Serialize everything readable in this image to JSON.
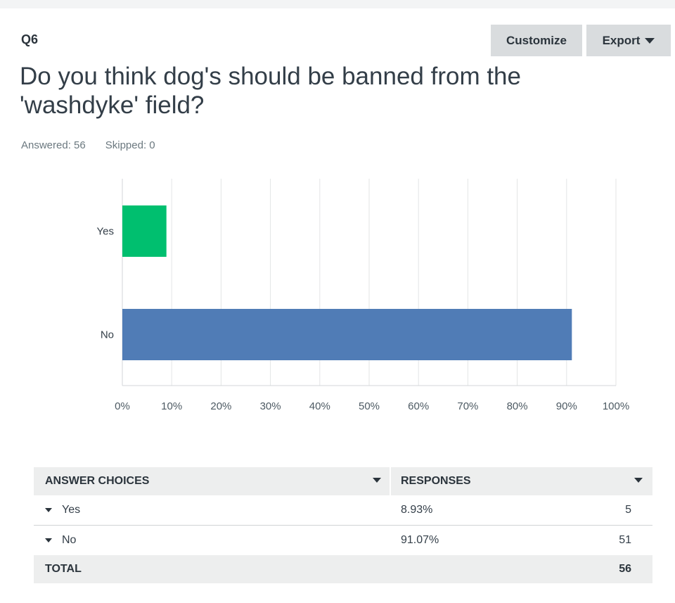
{
  "question": {
    "number": "Q6",
    "title": "Do you think dog's should be banned from the 'washdyke' field?",
    "answered_label": "Answered: 56",
    "skipped_label": "Skipped: 0"
  },
  "toolbar": {
    "customize_label": "Customize",
    "export_label": "Export"
  },
  "chart_data": {
    "type": "bar",
    "orientation": "horizontal",
    "categories": [
      "Yes",
      "No"
    ],
    "values": [
      8.93,
      91.07
    ],
    "colors": [
      "#00bf6f",
      "#507cb6"
    ],
    "xlim": [
      0,
      100
    ],
    "x_ticks": [
      "0%",
      "10%",
      "20%",
      "30%",
      "40%",
      "50%",
      "60%",
      "70%",
      "80%",
      "90%",
      "100%"
    ],
    "grid": true
  },
  "table": {
    "headers": [
      "ANSWER CHOICES",
      "RESPONSES"
    ],
    "rows": [
      {
        "choice": "Yes",
        "percent": "8.93%",
        "count": "5"
      },
      {
        "choice": "No",
        "percent": "91.07%",
        "count": "51"
      }
    ],
    "total_label": "TOTAL",
    "total_count": "56"
  }
}
